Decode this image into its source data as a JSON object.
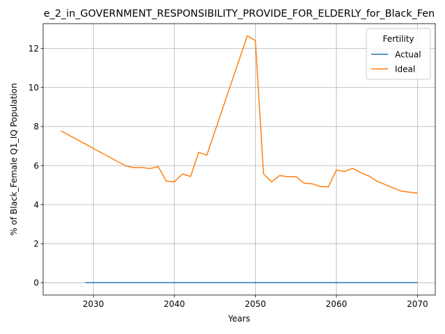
{
  "chart_data": {
    "type": "line",
    "title": "e_2_in_GOVERNMENT_RESPONSIBILITY_PROVIDE_FOR_ELDERLY_for_Black_Fen",
    "xlabel": "Years",
    "ylabel": "% of Black_Female Q1_IQ Population",
    "xlim": [
      2023.8,
      2072.2
    ],
    "ylim": [
      -0.63,
      13.27
    ],
    "xticks": [
      2030,
      2040,
      2050,
      2060,
      2070
    ],
    "yticks": [
      0,
      2,
      4,
      6,
      8,
      10,
      12
    ],
    "grid": true,
    "legend": {
      "title": "Fertility",
      "placement": "top-right"
    },
    "series": [
      {
        "name": "Actual",
        "color": "#1f77b4",
        "x": [
          2029,
          2070
        ],
        "y": [
          0,
          0
        ]
      },
      {
        "name": "Ideal",
        "color": "#ff7f0e",
        "x": [
          2026,
          2034,
          2035,
          2036,
          2037,
          2038,
          2039,
          2040,
          2041,
          2042,
          2043,
          2044,
          2049,
          2050,
          2051,
          2052,
          2053,
          2054,
          2055,
          2056,
          2057,
          2058,
          2059,
          2060,
          2061,
          2062,
          2063,
          2064,
          2065,
          2068,
          2070
        ],
        "y": [
          7.78,
          5.98,
          5.9,
          5.9,
          5.85,
          5.95,
          5.2,
          5.17,
          5.57,
          5.44,
          6.68,
          6.53,
          12.65,
          12.4,
          5.57,
          5.17,
          5.49,
          5.43,
          5.44,
          5.1,
          5.07,
          4.93,
          4.91,
          5.77,
          5.7,
          5.86,
          5.64,
          5.47,
          5.2,
          4.69,
          4.59
        ]
      }
    ]
  }
}
